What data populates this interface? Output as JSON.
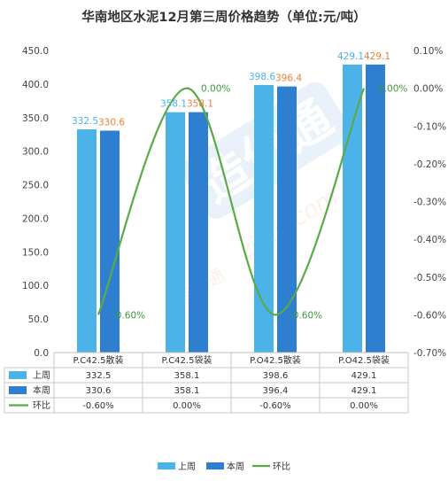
{
  "chart_data": {
    "type": "bar",
    "title": "华南地区水泥12月第三周价格趋势（单位:元/吨）",
    "categories": [
      "P.C42.5散装",
      "P.C42.5袋装",
      "P.O42.5散装",
      "P.O42.5袋装"
    ],
    "series": [
      {
        "name": "上周",
        "type": "bar",
        "values": [
          332.5,
          358.1,
          398.6,
          429.1
        ],
        "labels": [
          "332.5",
          "358.1",
          "398.6",
          "429.1"
        ],
        "color": "#4BB3E8",
        "label_color": "#4BB3E8"
      },
      {
        "name": "本周",
        "type": "bar",
        "values": [
          330.6,
          358.1,
          396.4,
          429.1
        ],
        "labels": [
          "330.6",
          "358.1",
          "396.4",
          "429.1"
        ],
        "color": "#2F7FD0",
        "label_color": "#E8823A"
      },
      {
        "name": "环比",
        "type": "line",
        "axis": "right",
        "values": [
          -0.6,
          0.0,
          -0.6,
          0.0
        ],
        "labels": [
          "-0.60%",
          "0.00%",
          "-0.60%",
          "0.00%"
        ],
        "color": "#5AAA46",
        "label_color": "#3A9A3A"
      }
    ],
    "ylim": [
      0,
      450
    ],
    "yticks": [
      "0.0",
      "50.0",
      "100.0",
      "150.0",
      "200.0",
      "250.0",
      "300.0",
      "350.0",
      "400.0",
      "450.0"
    ],
    "y2lim": [
      -0.7,
      0.1
    ],
    "y2ticks": [
      "-0.70%",
      "-0.60%",
      "-0.50%",
      "-0.40%",
      "-0.30%",
      "-0.20%",
      "-0.10%",
      "0.00%",
      "0.10%"
    ],
    "table_rows": [
      {
        "name": "上周",
        "cells": [
          "332.5",
          "358.1",
          "398.6",
          "429.1"
        ]
      },
      {
        "name": "本周",
        "cells": [
          "330.6",
          "358.1",
          "396.4",
          "429.1"
        ]
      },
      {
        "name": "环比",
        "cells": [
          "-0.60%",
          "0.00%",
          "-0.60%",
          "0.00%"
        ]
      }
    ],
    "legend": [
      "上周",
      "本周",
      "环比"
    ],
    "legend_position": "bottom",
    "grid": false,
    "watermark": "zjtcn.com"
  }
}
